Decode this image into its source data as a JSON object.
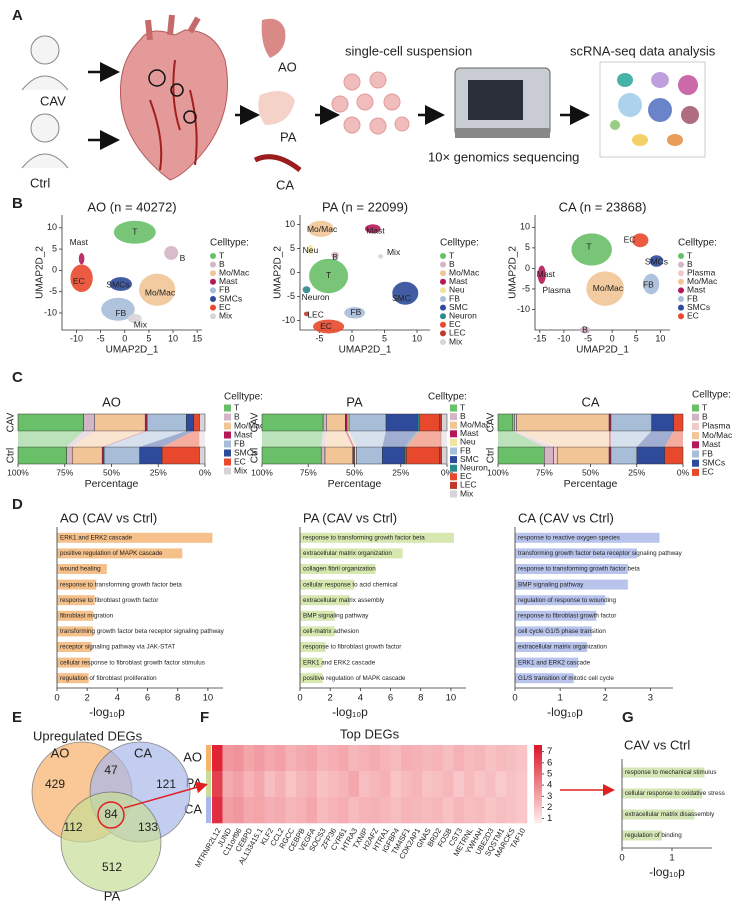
{
  "panel_labels": [
    "A",
    "B",
    "C",
    "D",
    "E",
    "F",
    "G"
  ],
  "panel_a": {
    "groups": [
      "CAV",
      "Ctrl"
    ],
    "tissues": [
      "AO",
      "PA",
      "CA"
    ],
    "steps": [
      "single-cell suspension",
      "10× genomics sequencing",
      "scRNA-seq data analysis"
    ]
  },
  "umap_panels": [
    {
      "title": "AO (n = 40272)",
      "xlabel": "UMAP2D_1",
      "ylabel": "UMAP2D_2",
      "xlim": [
        -13,
        16
      ],
      "ylim": [
        -14,
        13
      ],
      "xticks": [
        -10,
        -5,
        0,
        5,
        10,
        15
      ],
      "yticks": [
        -10,
        -5,
        0,
        5,
        10
      ],
      "legend_title": "Celltype:",
      "legend": [
        {
          "name": "T",
          "color": "#6abf69"
        },
        {
          "name": "B",
          "color": "#d4b5c6"
        },
        {
          "name": "Mo/Mac",
          "color": "#f2c597"
        },
        {
          "name": "Mast",
          "color": "#b5195a"
        },
        {
          "name": "FB",
          "color": "#a7bdd8"
        },
        {
          "name": "SMCs",
          "color": "#2e4a9a"
        },
        {
          "name": "EC",
          "color": "#e8492c"
        },
        {
          "name": "Mix",
          "color": "#d8d3d8"
        }
      ],
      "cluster_labels": [
        "Mast",
        "B",
        "EC",
        "SMCs",
        "Mo/Mac",
        "FB",
        "Mix",
        "T"
      ]
    },
    {
      "title": "PA (n = 22099)",
      "xlabel": "UMAP2D_1",
      "ylabel": "UMAP2D_2",
      "xlim": [
        -8,
        12
      ],
      "ylim": [
        -12,
        12
      ],
      "xticks": [
        -5,
        0,
        5,
        10
      ],
      "yticks": [
        -10,
        -5,
        0,
        5,
        10
      ],
      "legend_title": "Celltype:",
      "legend": [
        {
          "name": "T",
          "color": "#6abf69"
        },
        {
          "name": "B",
          "color": "#d4b5c6"
        },
        {
          "name": "Mo/Mac",
          "color": "#f2c597"
        },
        {
          "name": "Mast",
          "color": "#b5195a"
        },
        {
          "name": "Neu",
          "color": "#f1e39a"
        },
        {
          "name": "FB",
          "color": "#a7bdd8"
        },
        {
          "name": "SMC",
          "color": "#2e4a9a"
        },
        {
          "name": "Neuron",
          "color": "#2a8a8a"
        },
        {
          "name": "EC",
          "color": "#e8492c"
        },
        {
          "name": "LEC",
          "color": "#c0392b"
        },
        {
          "name": "Mix",
          "color": "#d8d3d8"
        }
      ],
      "cluster_labels": [
        "Mo/Mac",
        "Mast",
        "Neu",
        "B",
        "Mix",
        "T",
        "SMC",
        "Neuron",
        "LEC",
        "FB",
        "EC"
      ]
    },
    {
      "title": "CA (n = 23868)",
      "xlabel": "UMAP2D_1",
      "ylabel": "UMAP2D_2",
      "xlim": [
        -16,
        12
      ],
      "ylim": [
        -15,
        13
      ],
      "xticks": [
        -15,
        -10,
        -5,
        0,
        5,
        10
      ],
      "yticks": [
        -10,
        -5,
        0,
        5,
        10
      ],
      "legend_title": "Celltype:",
      "legend": [
        {
          "name": "T",
          "color": "#6abf69"
        },
        {
          "name": "B",
          "color": "#d4b5c6"
        },
        {
          "name": "Plasma",
          "color": "#f3c8c8"
        },
        {
          "name": "Mo/Mac",
          "color": "#f2c597"
        },
        {
          "name": "Mast",
          "color": "#b5195a"
        },
        {
          "name": "FB",
          "color": "#a7bdd8"
        },
        {
          "name": "SMCs",
          "color": "#2e4a9a"
        },
        {
          "name": "EC",
          "color": "#e8492c"
        }
      ],
      "cluster_labels": [
        "T",
        "EC",
        "SMCs",
        "Mast",
        "Plasma",
        "Mo/Mac",
        "FB",
        "B"
      ]
    }
  ],
  "venn": {
    "title": "Upregulated DEGs",
    "sets": [
      "AO",
      "CA",
      "PA"
    ],
    "regions": [
      429,
      47,
      121,
      112,
      84,
      133,
      512
    ],
    "colors": [
      "#f7b26b",
      "#a9b8ea",
      "#c8dd98"
    ]
  },
  "chart_data": [
    {
      "type": "stacked_bar",
      "title": "AO",
      "categories": [
        "CAV",
        "Ctrl"
      ],
      "xlabel": "Percentage",
      "legend_title": "Celltype:",
      "xlim": [
        100,
        0
      ],
      "xticks": [
        {
          "value": 100,
          "label": "100%"
        },
        {
          "value": 75,
          "label": "75%"
        },
        {
          "value": 50,
          "label": "50%"
        },
        {
          "value": 25,
          "label": "25%"
        },
        {
          "value": 0,
          "label": "0%"
        }
      ],
      "series": [
        {
          "name": "T",
          "color": "#6abf69",
          "values": [
            35,
            26
          ]
        },
        {
          "name": "B",
          "color": "#d4b5c6",
          "values": [
            6,
            3
          ]
        },
        {
          "name": "Mo/Mac",
          "color": "#f2c597",
          "values": [
            27,
            16
          ]
        },
        {
          "name": "Mast",
          "color": "#b5195a",
          "values": [
            1,
            1
          ]
        },
        {
          "name": "FB",
          "color": "#a7bdd8",
          "values": [
            21,
            19
          ]
        },
        {
          "name": "SMCs",
          "color": "#2e4a9a",
          "values": [
            4,
            12
          ]
        },
        {
          "name": "EC",
          "color": "#e8492c",
          "values": [
            3,
            20
          ]
        },
        {
          "name": "Mix",
          "color": "#d8d3d8",
          "values": [
            3,
            3
          ]
        }
      ]
    },
    {
      "type": "stacked_bar",
      "title": "PA",
      "categories": [
        "CAV",
        "Ctrl"
      ],
      "xlabel": "Percentage",
      "legend_title": "Celltype:",
      "xlim": [
        100,
        0
      ],
      "xticks": [
        {
          "value": 100,
          "label": "100%"
        },
        {
          "value": 75,
          "label": "75%"
        },
        {
          "value": 50,
          "label": "50%"
        },
        {
          "value": 25,
          "label": "25%"
        },
        {
          "value": 0,
          "label": "0%"
        }
      ],
      "series": [
        {
          "name": "T",
          "color": "#6abf69",
          "values": [
            33,
            32
          ]
        },
        {
          "name": "B",
          "color": "#d4b5c6",
          "values": [
            2,
            2
          ]
        },
        {
          "name": "Mo/Mac",
          "color": "#f2c597",
          "values": [
            10,
            15
          ]
        },
        {
          "name": "Mast",
          "color": "#b5195a",
          "values": [
            1,
            1
          ]
        },
        {
          "name": "Neu",
          "color": "#f1e39a",
          "values": [
            1,
            1
          ]
        },
        {
          "name": "FB",
          "color": "#a7bdd8",
          "values": [
            20,
            14
          ]
        },
        {
          "name": "SMC",
          "color": "#2e4a9a",
          "values": [
            17,
            12
          ]
        },
        {
          "name": "Neuron",
          "color": "#2a8a8a",
          "values": [
            1,
            1
          ]
        },
        {
          "name": "EC",
          "color": "#e8492c",
          "values": [
            11,
            18
          ]
        },
        {
          "name": "LEC",
          "color": "#c0392b",
          "values": [
            1,
            1
          ]
        },
        {
          "name": "Mix",
          "color": "#d8d3d8",
          "values": [
            3,
            3
          ]
        }
      ]
    },
    {
      "type": "stacked_bar",
      "title": "CA",
      "categories": [
        "CAV",
        "Ctrl"
      ],
      "xlabel": "Percentage",
      "legend_title": "Celltype:",
      "xlim": [
        100,
        0
      ],
      "xticks": [
        {
          "value": 100,
          "label": "100%"
        },
        {
          "value": 75,
          "label": "75%"
        },
        {
          "value": 50,
          "label": "50%"
        },
        {
          "value": 25,
          "label": "25%"
        },
        {
          "value": 0,
          "label": "0%"
        }
      ],
      "series": [
        {
          "name": "T",
          "color": "#6abf69",
          "values": [
            8,
            25
          ]
        },
        {
          "name": "B",
          "color": "#d4b5c6",
          "values": [
            1,
            5
          ]
        },
        {
          "name": "Plasma",
          "color": "#f3c8c8",
          "values": [
            1,
            2
          ]
        },
        {
          "name": "Mo/Mac",
          "color": "#f2c597",
          "values": [
            50,
            28
          ]
        },
        {
          "name": "Mast",
          "color": "#b5195a",
          "values": [
            1,
            1
          ]
        },
        {
          "name": "FB",
          "color": "#a7bdd8",
          "values": [
            22,
            14
          ]
        },
        {
          "name": "SMCs",
          "color": "#2e4a9a",
          "values": [
            12,
            15
          ]
        },
        {
          "name": "EC",
          "color": "#e8492c",
          "values": [
            5,
            10
          ]
        }
      ]
    },
    {
      "type": "hbar",
      "title": "AO (CAV vs Ctrl)",
      "xlabel": "-log₁₀p",
      "color": "#f5c08a",
      "xlim": [
        0,
        11
      ],
      "xticks": [
        0,
        2,
        4,
        6,
        8,
        10
      ],
      "categories": [
        "ERK1 and ERK2 cascade",
        "positive regulation of MAPK cascade",
        "wound healing",
        "response to transforming growth factor beta",
        "response to fibroblast growth factor",
        "fibroblast migration",
        "transforming growth factor beta receptor signaling pathway",
        "receptor signaling pathway via JAK-STAT",
        "cellular response to fibroblast growth factor stimulus",
        "regulation of fibroblast proliferation"
      ],
      "values": [
        10.3,
        8.3,
        3.3,
        2.6,
        2.5,
        2.4,
        2.4,
        2.3,
        2.2,
        2.1
      ]
    },
    {
      "type": "hbar",
      "title": "PA (CAV vs Ctrl)",
      "xlabel": "-log₁₀p",
      "color": "#d6e8b0",
      "xlim": [
        0,
        11
      ],
      "xticks": [
        0,
        2,
        4,
        6,
        8,
        10
      ],
      "categories": [
        "response to transforming growth factor beta",
        "extracellular matrix organization",
        "collagen fibril organization",
        "cellular response to acid chemical",
        "extracellular matrix assembly",
        "BMP signaling pathway",
        "cell-matrix adhesion",
        "response to fibroblast growth factor",
        "ERK1 and ERK2 cascade",
        "positive regulation of MAPK cascade"
      ],
      "values": [
        10.2,
        6.8,
        5.0,
        3.6,
        3.3,
        2.3,
        2.3,
        1.7,
        1.5,
        1.5
      ]
    },
    {
      "type": "hbar",
      "title": "CA (CAV vs Ctrl)",
      "xlabel": "-log₁₀p",
      "color": "#b8c4ec",
      "xlim": [
        0,
        3.5
      ],
      "xticks": [
        0,
        1,
        2,
        3
      ],
      "categories": [
        "response to reactive oxygen species",
        "transforming growth factor beta receptor signaling pathway",
        "response to transforming growth factor beta",
        "BMP signaling pathway",
        "regulation of response to wounding",
        "response to fibroblast growth factor",
        "cell cycle G1/S phase transition",
        "extracellular matrix organization",
        "ERK1 and ERK2 cascade",
        "G1/S transition of mitotic cell cycle"
      ],
      "values": [
        3.2,
        2.7,
        2.5,
        2.5,
        2.0,
        1.8,
        1.7,
        1.6,
        1.4,
        1.3
      ]
    },
    {
      "type": "heatmap",
      "title": "Top DEGs",
      "rows": [
        "AO",
        "PA",
        "CA"
      ],
      "row_colors": [
        "#f7b26b",
        "#c8dd98",
        "#a9b8ea"
      ],
      "zlim": [
        0.6,
        7.6
      ],
      "zticks": [
        1,
        2,
        3,
        4,
        5,
        6,
        7
      ],
      "columns": [
        "MTRNR2L12",
        "JUND",
        "C11orf96",
        "CEBPD",
        "AL133415.1",
        "KLF2",
        "CCL2",
        "RGCC",
        "CEBPB",
        "VEGFA",
        "SOCS3",
        "ZFP36",
        "CYR61",
        "HTRA3",
        "TXNIP",
        "H2AFZ",
        "HTRA1",
        "IGFBP4",
        "TM4SF1",
        "CDK2AP1",
        "GNAS",
        "BRD2",
        "FOSB",
        "CST3",
        "METRNL",
        "YWHAH",
        "UBE2D3",
        "SQSTM1",
        "MARCKS",
        "TAF10"
      ],
      "values": [
        [
          7.1,
          3.4,
          3.6,
          3.0,
          3.3,
          2.9,
          3.1,
          2.6,
          2.8,
          3.0,
          2.5,
          2.7,
          2.9,
          2.4,
          2.6,
          2.8,
          2.5,
          2.3,
          2.7,
          2.6,
          2.4,
          2.5,
          2.2,
          2.6,
          2.3,
          2.4,
          2.1,
          2.3,
          2.2,
          2.0
        ],
        [
          6.2,
          2.8,
          3.1,
          2.5,
          2.9,
          2.2,
          2.6,
          2.0,
          2.4,
          2.7,
          2.1,
          2.3,
          2.5,
          2.9,
          2.2,
          2.4,
          2.6,
          2.0,
          2.3,
          2.5,
          2.1,
          2.2,
          2.4,
          1.9,
          2.3,
          2.0,
          2.2,
          1.8,
          2.1,
          1.9
        ],
        [
          6.8,
          3.2,
          3.4,
          2.9,
          3.0,
          2.7,
          2.8,
          2.4,
          2.6,
          2.9,
          2.3,
          2.5,
          2.7,
          2.3,
          2.5,
          2.6,
          2.4,
          2.2,
          2.5,
          2.4,
          2.3,
          2.4,
          2.1,
          2.4,
          2.2,
          2.3,
          2.0,
          2.2,
          2.1,
          1.9
        ]
      ]
    },
    {
      "type": "hbar",
      "title": "CAV vs Ctrl",
      "xlabel": "-log₁₀p",
      "color": "#d4e6b5",
      "xlim": [
        0,
        1.8
      ],
      "xticks": [
        0,
        1
      ],
      "categories": [
        "response to mechanical stimulus",
        "cellular response to oxidative stress",
        "extracellular matrix disassembly",
        "regulation of binding"
      ],
      "values": [
        1.65,
        1.6,
        1.45,
        0.8
      ]
    }
  ]
}
